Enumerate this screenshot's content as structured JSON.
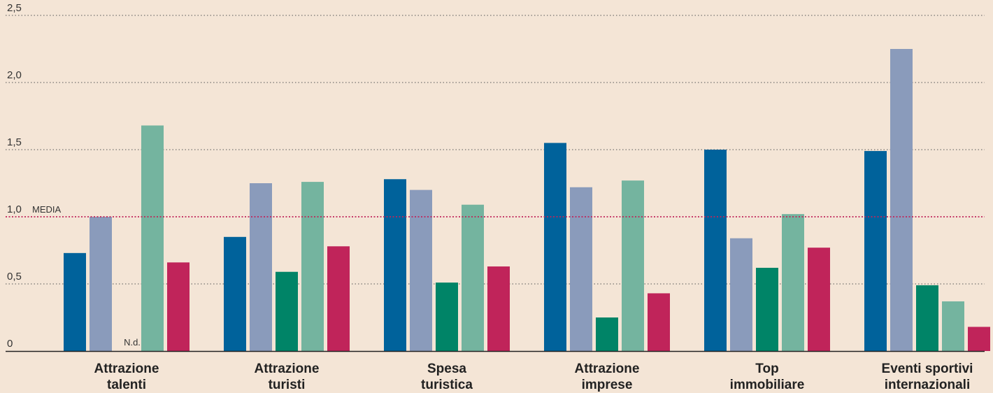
{
  "chart_data": {
    "type": "bar",
    "categories": [
      [
        "Attrazione",
        "talenti"
      ],
      [
        "Attrazione",
        "turisti"
      ],
      [
        "Spesa",
        "turistica"
      ],
      [
        "Attrazione",
        "imprese"
      ],
      [
        "Top",
        "immobiliare"
      ],
      [
        "Eventi sportivi",
        "internazionali"
      ]
    ],
    "series": [
      {
        "color": "#00629b",
        "values": [
          0.73,
          0.85,
          1.28,
          1.55,
          1.5,
          1.49
        ]
      },
      {
        "color": "#8a9bbb",
        "values": [
          1.0,
          1.25,
          1.2,
          1.22,
          0.84,
          2.25
        ]
      },
      {
        "color": "#008467",
        "values": [
          null,
          0.59,
          0.51,
          0.25,
          0.62,
          0.49
        ]
      },
      {
        "color": "#74b49f",
        "values": [
          1.68,
          1.26,
          1.09,
          1.27,
          1.02,
          0.37
        ]
      },
      {
        "color": "#c0245a",
        "values": [
          0.66,
          0.78,
          0.63,
          0.43,
          0.77,
          0.18
        ]
      }
    ],
    "missing_label": "N.d.",
    "yticks": [
      "0",
      "0,5",
      "1,0",
      "1,5",
      "2,0",
      "2,5"
    ],
    "ytick_values": [
      0,
      0.5,
      1.0,
      1.5,
      2.0,
      2.5
    ],
    "ylim": [
      0,
      2.5
    ],
    "reference_line": {
      "value": 1.0,
      "label": "MEDIA",
      "color": "#c0245a"
    },
    "grid": true,
    "title": "",
    "xlabel": "",
    "ylabel": ""
  }
}
